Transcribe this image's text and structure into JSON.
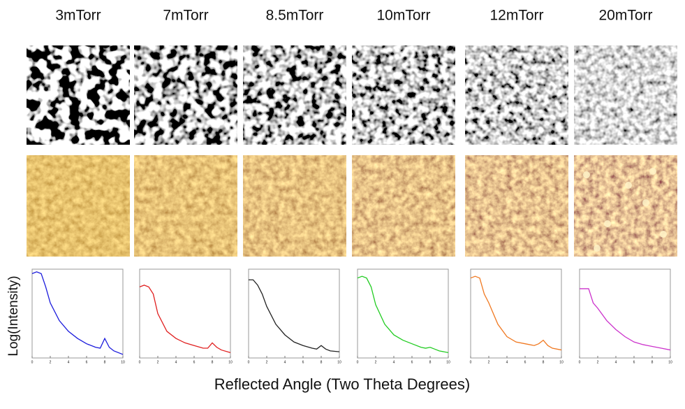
{
  "figure": {
    "y_label": "Log(Intensity)",
    "x_label": "Reflected Angle (Two Theta Degrees)"
  },
  "chart_data": [
    {
      "type": "line",
      "title": "3mTorr",
      "x": [
        0,
        0.5,
        1,
        1.5,
        2,
        3,
        4,
        5,
        6,
        7,
        7.5,
        8,
        8.5,
        9,
        10
      ],
      "series": [
        {
          "color": "#1a1adc",
          "values": [
            95,
            97,
            95,
            80,
            62,
            42,
            30,
            22,
            16,
            12,
            11,
            22,
            12,
            8,
            4
          ]
        }
      ],
      "xlim": [
        0,
        10
      ],
      "ylim": [
        0,
        100
      ],
      "xticks": [
        0,
        2,
        4,
        6,
        8,
        10
      ]
    },
    {
      "type": "line",
      "title": "7mTorr",
      "x": [
        0,
        0.5,
        1,
        1.5,
        2,
        3,
        4,
        5,
        6,
        7,
        7.5,
        8,
        8.5,
        9,
        10
      ],
      "series": [
        {
          "color": "#e02020",
          "values": [
            80,
            82,
            80,
            72,
            50,
            30,
            22,
            17,
            14,
            11,
            11,
            17,
            12,
            9,
            6
          ]
        }
      ],
      "xlim": [
        0,
        10
      ],
      "ylim": [
        0,
        100
      ],
      "xticks": [
        0,
        2,
        4,
        6,
        8,
        10
      ]
    },
    {
      "type": "line",
      "title": "8.5mTorr",
      "x": [
        0,
        0.5,
        1,
        1.5,
        2,
        3,
        4,
        5,
        6,
        7,
        7.5,
        8,
        8.5,
        9,
        10
      ],
      "series": [
        {
          "color": "#222222",
          "values": [
            88,
            88,
            82,
            72,
            58,
            38,
            26,
            18,
            14,
            11,
            10,
            14,
            10,
            8,
            7
          ]
        }
      ],
      "xlim": [
        0,
        10
      ],
      "ylim": [
        0,
        100
      ],
      "xticks": [
        0,
        2,
        4,
        6,
        8,
        10
      ]
    },
    {
      "type": "line",
      "title": "10mTorr",
      "x": [
        0,
        0.5,
        1,
        1.5,
        2,
        3,
        4,
        5,
        6,
        7,
        7.5,
        8,
        8.5,
        9,
        10
      ],
      "series": [
        {
          "color": "#22cc22",
          "values": [
            90,
            92,
            90,
            80,
            60,
            38,
            26,
            20,
            16,
            12,
            11,
            12,
            10,
            8,
            6
          ]
        }
      ],
      "xlim": [
        0,
        10
      ],
      "ylim": [
        0,
        100
      ],
      "xticks": [
        0,
        2,
        4,
        6,
        8,
        10
      ]
    },
    {
      "type": "line",
      "title": "12mTorr",
      "x": [
        0,
        0.5,
        1,
        1.5,
        2,
        3,
        4,
        5,
        6,
        7,
        7.5,
        8,
        8.5,
        9,
        10
      ],
      "series": [
        {
          "color": "#f07820",
          "values": [
            90,
            92,
            90,
            72,
            62,
            38,
            24,
            18,
            16,
            14,
            16,
            20,
            14,
            11,
            9
          ]
        }
      ],
      "xlim": [
        0,
        10
      ],
      "ylim": [
        0,
        100
      ],
      "xticks": [
        0,
        2,
        4,
        6,
        8,
        10
      ]
    },
    {
      "type": "line",
      "title": "20mTorr",
      "x": [
        0,
        0.5,
        1,
        1.5,
        2,
        3,
        4,
        5,
        6,
        7,
        7.5,
        8,
        8.5,
        9,
        10
      ],
      "series": [
        {
          "color": "#cc33cc",
          "values": [
            78,
            78,
            78,
            62,
            56,
            42,
            32,
            24,
            18,
            15,
            14,
            13,
            12,
            11,
            9
          ]
        }
      ],
      "xlim": [
        0,
        10
      ],
      "ylim": [
        0,
        100
      ],
      "xticks": [
        0,
        2,
        4,
        6,
        8,
        10
      ]
    }
  ]
}
